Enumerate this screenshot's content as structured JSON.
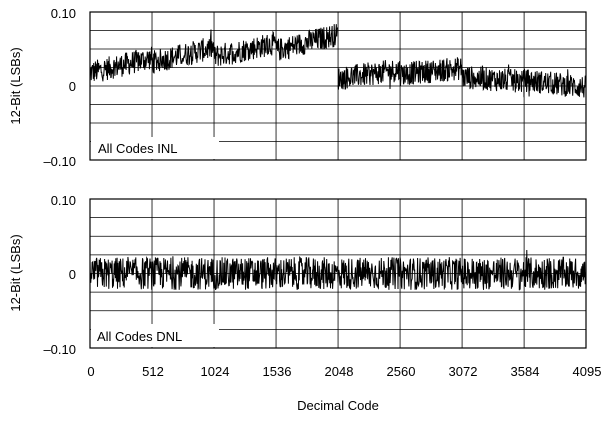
{
  "chart_data": [
    {
      "type": "line",
      "annotation": "All Codes INL",
      "ylabel": "12-Bit (LSBs)",
      "xlabel": "",
      "xlim": [
        0,
        4095
      ],
      "ylim": [
        -0.1,
        0.1
      ],
      "x_ticks": [
        "0",
        "512",
        "1024",
        "1536",
        "2048",
        "2560",
        "3072",
        "3584",
        "4095"
      ],
      "y_ticks": [
        "0.10",
        "0",
        "–0.10"
      ],
      "grid": true,
      "noise_band_lsb": 0.016,
      "segments": [
        {
          "x": [
            0,
            511
          ],
          "y": [
            0.018,
            0.038
          ]
        },
        {
          "x": [
            512,
            1023
          ],
          "y": [
            0.032,
            0.052
          ]
        },
        {
          "x": [
            1024,
            1535
          ],
          "y": [
            0.04,
            0.058
          ]
        },
        {
          "x": [
            1536,
            2047
          ],
          "y": [
            0.048,
            0.07
          ]
        },
        {
          "x": [
            2048,
            2559
          ],
          "y": [
            0.01,
            0.022
          ]
        },
        {
          "x": [
            2560,
            3071
          ],
          "y": [
            0.016,
            0.024
          ]
        },
        {
          "x": [
            3072,
            3583
          ],
          "y": [
            0.012,
            0.006
          ]
        },
        {
          "x": [
            3584,
            4095
          ],
          "y": [
            0.008,
            -0.002
          ]
        }
      ]
    },
    {
      "type": "line",
      "annotation": "All Codes DNL",
      "ylabel": "12-Bit (LSBs)",
      "xlabel": "Decimal Code",
      "xlim": [
        0,
        4095
      ],
      "ylim": [
        -0.1,
        0.1
      ],
      "x_ticks": [
        "0",
        "512",
        "1024",
        "1536",
        "2048",
        "2560",
        "3072",
        "3584",
        "4095"
      ],
      "y_ticks": [
        "0.10",
        "0",
        "–0.10"
      ],
      "grid": true,
      "noise_band_lsb": 0.022,
      "segments": [
        {
          "x": [
            0,
            4095
          ],
          "y": [
            0.0,
            0.0
          ]
        }
      ]
    }
  ]
}
